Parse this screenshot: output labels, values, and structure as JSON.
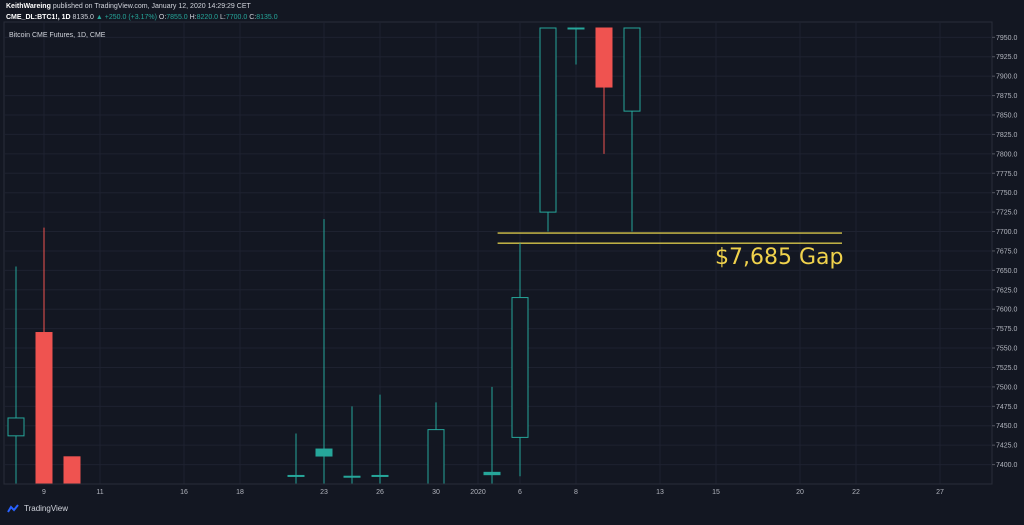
{
  "header": {
    "author": "KeithWareing",
    "published": "published on TradingView.com, January 12, 2020 14:29:29 CET",
    "ticker": "CME_DL:BTC1!, 1D",
    "last": "8135.0",
    "change": "▲ +250.0 (+3.17%)",
    "o_label": "O:",
    "o_val": "7855.0",
    "h_label": "H:",
    "h_val": "8220.0",
    "l_label": "L:",
    "l_val": "7700.0",
    "c_label": "C:",
    "c_val": "8135.0"
  },
  "series_title": "Bitcoin CME Futures, 1D, CME",
  "footer": {
    "brand": "TradingView"
  },
  "annotation": "$7,685 Gap",
  "colors": {
    "up": "#26a69a",
    "down": "#ef5350",
    "gap": "#d4c44a",
    "grid": "#1e2230",
    "axis_text": "#b2b5be"
  },
  "chart_data": {
    "type": "candlestick",
    "title": "Bitcoin CME Futures, 1D, CME",
    "ylim": [
      7375,
      7962
    ],
    "y_ticks": [
      7400,
      7425,
      7450,
      7475,
      7500,
      7525,
      7550,
      7575,
      7600,
      7625,
      7650,
      7675,
      7700,
      7725,
      7750,
      7775,
      7800,
      7825,
      7850,
      7875,
      7900,
      7925,
      7950
    ],
    "x_ticks": [
      {
        "label": "9",
        "slot": 4
      },
      {
        "label": "11",
        "slot": 6
      },
      {
        "label": "16",
        "slot": 9
      },
      {
        "label": "18",
        "slot": 11
      },
      {
        "label": "23",
        "slot": 14
      },
      {
        "label": "26",
        "slot": 16
      },
      {
        "label": "30",
        "slot": 18
      },
      {
        "label": "2020",
        "slot": 19.5
      },
      {
        "label": "6",
        "slot": 21
      },
      {
        "label": "8",
        "slot": 23
      },
      {
        "label": "13",
        "slot": 26
      },
      {
        "label": "15",
        "slot": 28
      },
      {
        "label": "20",
        "slot": 31
      },
      {
        "label": "22",
        "slot": 33
      },
      {
        "label": "27",
        "slot": 36
      }
    ],
    "candles": [
      {
        "slot": 3,
        "open": 7437,
        "high": 7655,
        "low": 7370,
        "close": 7460
      },
      {
        "slot": 4,
        "open": 7570,
        "high": 7705,
        "low": 7370,
        "close": 7370
      },
      {
        "slot": 5,
        "open": 7410,
        "high": 7410,
        "low": 7370,
        "close": 7370
      },
      {
        "slot": 13,
        "open": 7385,
        "high": 7440,
        "low": 7370,
        "close": 7386
      },
      {
        "slot": 14,
        "open": 7411,
        "high": 7716,
        "low": 7370,
        "close": 7420
      },
      {
        "slot": 15,
        "open": 7385,
        "high": 7475,
        "low": 7370,
        "close": 7385
      },
      {
        "slot": 16,
        "open": 7385,
        "high": 7490,
        "low": 7370,
        "close": 7386
      },
      {
        "slot": 18,
        "open": 7370,
        "high": 7480,
        "low": 7370,
        "close": 7445
      },
      {
        "slot": 20,
        "open": 7387,
        "high": 7500,
        "low": 7370,
        "close": 7390
      },
      {
        "slot": 21,
        "open": 7435,
        "high": 7685,
        "low": 7385,
        "close": 7615
      },
      {
        "slot": 22,
        "open": 7725,
        "high": 7962,
        "low": 7700,
        "close": 7962
      },
      {
        "slot": 23,
        "open": 7962,
        "high": 7962,
        "low": 7915,
        "close": 7962
      },
      {
        "slot": 24,
        "open": 7962,
        "high": 7962,
        "low": 7800,
        "close": 7886
      },
      {
        "slot": 25,
        "open": 7855,
        "high": 7962,
        "low": 7700,
        "close": 7962
      }
    ],
    "gap_lines": [
      7685,
      7698
    ],
    "gap_start_slot": 20.2,
    "gap_end_slot": 32.5
  }
}
